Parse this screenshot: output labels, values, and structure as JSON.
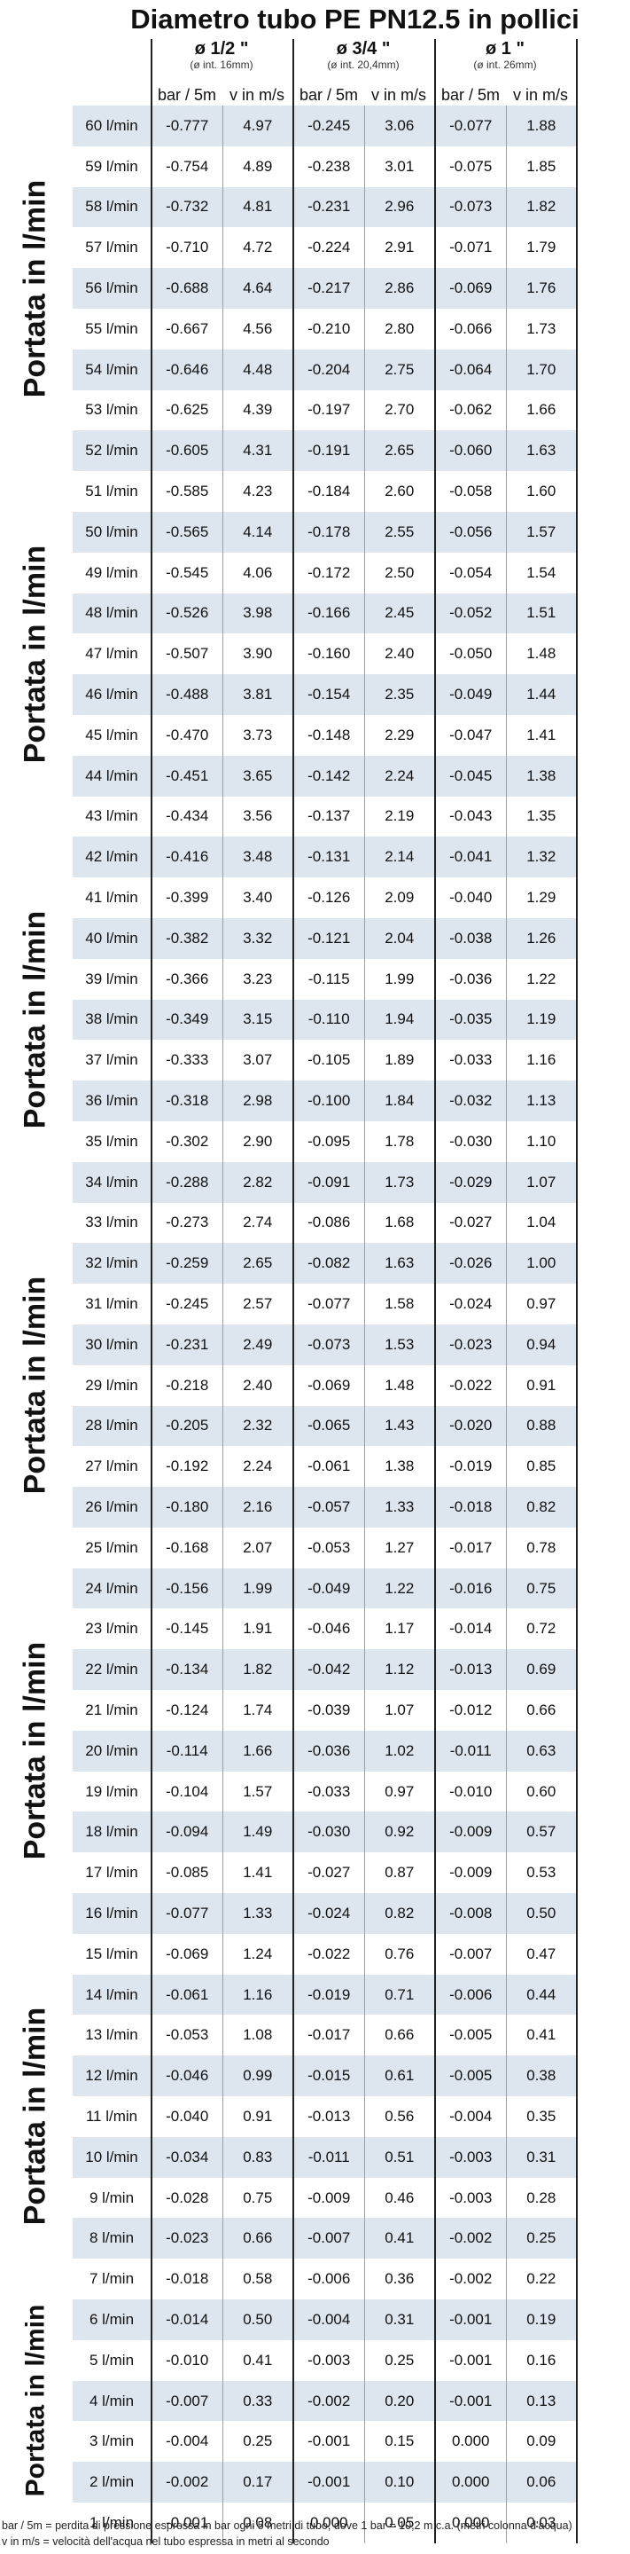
{
  "title": "Diametro tubo PE PN12.5 in pollici",
  "groups": [
    {
      "label": "ø 1/2 \"",
      "sub": "(ø int. 16mm)"
    },
    {
      "label": "ø 3/4 \"",
      "sub": "(ø int. 20,4mm)"
    },
    {
      "label": "ø 1 \"",
      "sub": "(ø int. 26mm)"
    }
  ],
  "col_bar": "bar / 5m",
  "col_v": "v in m/s",
  "side_label": "Portata in l/min",
  "rows": [
    [
      "60 l/min",
      "-0.777",
      "4.97",
      "-0.245",
      "3.06",
      "-0.077",
      "1.88"
    ],
    [
      "59 l/min",
      "-0.754",
      "4.89",
      "-0.238",
      "3.01",
      "-0.075",
      "1.85"
    ],
    [
      "58 l/min",
      "-0.732",
      "4.81",
      "-0.231",
      "2.96",
      "-0.073",
      "1.82"
    ],
    [
      "57 l/min",
      "-0.710",
      "4.72",
      "-0.224",
      "2.91",
      "-0.071",
      "1.79"
    ],
    [
      "56 l/min",
      "-0.688",
      "4.64",
      "-0.217",
      "2.86",
      "-0.069",
      "1.76"
    ],
    [
      "55 l/min",
      "-0.667",
      "4.56",
      "-0.210",
      "2.80",
      "-0.066",
      "1.73"
    ],
    [
      "54 l/min",
      "-0.646",
      "4.48",
      "-0.204",
      "2.75",
      "-0.064",
      "1.70"
    ],
    [
      "53 l/min",
      "-0.625",
      "4.39",
      "-0.197",
      "2.70",
      "-0.062",
      "1.66"
    ],
    [
      "52 l/min",
      "-0.605",
      "4.31",
      "-0.191",
      "2.65",
      "-0.060",
      "1.63"
    ],
    [
      "51 l/min",
      "-0.585",
      "4.23",
      "-0.184",
      "2.60",
      "-0.058",
      "1.60"
    ],
    [
      "50 l/min",
      "-0.565",
      "4.14",
      "-0.178",
      "2.55",
      "-0.056",
      "1.57"
    ],
    [
      "49 l/min",
      "-0.545",
      "4.06",
      "-0.172",
      "2.50",
      "-0.054",
      "1.54"
    ],
    [
      "48 l/min",
      "-0.526",
      "3.98",
      "-0.166",
      "2.45",
      "-0.052",
      "1.51"
    ],
    [
      "47 l/min",
      "-0.507",
      "3.90",
      "-0.160",
      "2.40",
      "-0.050",
      "1.48"
    ],
    [
      "46 l/min",
      "-0.488",
      "3.81",
      "-0.154",
      "2.35",
      "-0.049",
      "1.44"
    ],
    [
      "45 l/min",
      "-0.470",
      "3.73",
      "-0.148",
      "2.29",
      "-0.047",
      "1.41"
    ],
    [
      "44 l/min",
      "-0.451",
      "3.65",
      "-0.142",
      "2.24",
      "-0.045",
      "1.38"
    ],
    [
      "43 l/min",
      "-0.434",
      "3.56",
      "-0.137",
      "2.19",
      "-0.043",
      "1.35"
    ],
    [
      "42 l/min",
      "-0.416",
      "3.48",
      "-0.131",
      "2.14",
      "-0.041",
      "1.32"
    ],
    [
      "41 l/min",
      "-0.399",
      "3.40",
      "-0.126",
      "2.09",
      "-0.040",
      "1.29"
    ],
    [
      "40 l/min",
      "-0.382",
      "3.32",
      "-0.121",
      "2.04",
      "-0.038",
      "1.26"
    ],
    [
      "39 l/min",
      "-0.366",
      "3.23",
      "-0.115",
      "1.99",
      "-0.036",
      "1.22"
    ],
    [
      "38 l/min",
      "-0.349",
      "3.15",
      "-0.110",
      "1.94",
      "-0.035",
      "1.19"
    ],
    [
      "37 l/min",
      "-0.333",
      "3.07",
      "-0.105",
      "1.89",
      "-0.033",
      "1.16"
    ],
    [
      "36 l/min",
      "-0.318",
      "2.98",
      "-0.100",
      "1.84",
      "-0.032",
      "1.13"
    ],
    [
      "35 l/min",
      "-0.302",
      "2.90",
      "-0.095",
      "1.78",
      "-0.030",
      "1.10"
    ],
    [
      "34 l/min",
      "-0.288",
      "2.82",
      "-0.091",
      "1.73",
      "-0.029",
      "1.07"
    ],
    [
      "33 l/min",
      "-0.273",
      "2.74",
      "-0.086",
      "1.68",
      "-0.027",
      "1.04"
    ],
    [
      "32 l/min",
      "-0.259",
      "2.65",
      "-0.082",
      "1.63",
      "-0.026",
      "1.00"
    ],
    [
      "31 l/min",
      "-0.245",
      "2.57",
      "-0.077",
      "1.58",
      "-0.024",
      "0.97"
    ],
    [
      "30 l/min",
      "-0.231",
      "2.49",
      "-0.073",
      "1.53",
      "-0.023",
      "0.94"
    ],
    [
      "29 l/min",
      "-0.218",
      "2.40",
      "-0.069",
      "1.48",
      "-0.022",
      "0.91"
    ],
    [
      "28 l/min",
      "-0.205",
      "2.32",
      "-0.065",
      "1.43",
      "-0.020",
      "0.88"
    ],
    [
      "27 l/min",
      "-0.192",
      "2.24",
      "-0.061",
      "1.38",
      "-0.019",
      "0.85"
    ],
    [
      "26 l/min",
      "-0.180",
      "2.16",
      "-0.057",
      "1.33",
      "-0.018",
      "0.82"
    ],
    [
      "25 l/min",
      "-0.168",
      "2.07",
      "-0.053",
      "1.27",
      "-0.017",
      "0.78"
    ],
    [
      "24 l/min",
      "-0.156",
      "1.99",
      "-0.049",
      "1.22",
      "-0.016",
      "0.75"
    ],
    [
      "23 l/min",
      "-0.145",
      "1.91",
      "-0.046",
      "1.17",
      "-0.014",
      "0.72"
    ],
    [
      "22 l/min",
      "-0.134",
      "1.82",
      "-0.042",
      "1.12",
      "-0.013",
      "0.69"
    ],
    [
      "21 l/min",
      "-0.124",
      "1.74",
      "-0.039",
      "1.07",
      "-0.012",
      "0.66"
    ],
    [
      "20 l/min",
      "-0.114",
      "1.66",
      "-0.036",
      "1.02",
      "-0.011",
      "0.63"
    ],
    [
      "19 l/min",
      "-0.104",
      "1.57",
      "-0.033",
      "0.97",
      "-0.010",
      "0.60"
    ],
    [
      "18 l/min",
      "-0.094",
      "1.49",
      "-0.030",
      "0.92",
      "-0.009",
      "0.57"
    ],
    [
      "17 l/min",
      "-0.085",
      "1.41",
      "-0.027",
      "0.87",
      "-0.009",
      "0.53"
    ],
    [
      "16 l/min",
      "-0.077",
      "1.33",
      "-0.024",
      "0.82",
      "-0.008",
      "0.50"
    ],
    [
      "15 l/min",
      "-0.069",
      "1.24",
      "-0.022",
      "0.76",
      "-0.007",
      "0.47"
    ],
    [
      "14 l/min",
      "-0.061",
      "1.16",
      "-0.019",
      "0.71",
      "-0.006",
      "0.44"
    ],
    [
      "13 l/min",
      "-0.053",
      "1.08",
      "-0.017",
      "0.66",
      "-0.005",
      "0.41"
    ],
    [
      "12 l/min",
      "-0.046",
      "0.99",
      "-0.015",
      "0.61",
      "-0.005",
      "0.38"
    ],
    [
      "11 l/min",
      "-0.040",
      "0.91",
      "-0.013",
      "0.56",
      "-0.004",
      "0.35"
    ],
    [
      "10 l/min",
      "-0.034",
      "0.83",
      "-0.011",
      "0.51",
      "-0.003",
      "0.31"
    ],
    [
      "9 l/min",
      "-0.028",
      "0.75",
      "-0.009",
      "0.46",
      "-0.003",
      "0.28"
    ],
    [
      "8 l/min",
      "-0.023",
      "0.66",
      "-0.007",
      "0.41",
      "-0.002",
      "0.25"
    ],
    [
      "7 l/min",
      "-0.018",
      "0.58",
      "-0.006",
      "0.36",
      "-0.002",
      "0.22"
    ],
    [
      "6 l/min",
      "-0.014",
      "0.50",
      "-0.004",
      "0.31",
      "-0.001",
      "0.19"
    ],
    [
      "5 l/min",
      "-0.010",
      "0.41",
      "-0.003",
      "0.25",
      "-0.001",
      "0.16"
    ],
    [
      "4 l/min",
      "-0.007",
      "0.33",
      "-0.002",
      "0.20",
      "-0.001",
      "0.13"
    ],
    [
      "3 l/min",
      "-0.004",
      "0.25",
      "-0.001",
      "0.15",
      "0.000",
      "0.09"
    ],
    [
      "2 l/min",
      "-0.002",
      "0.17",
      "-0.001",
      "0.10",
      "0.000",
      "0.06"
    ],
    [
      "1 l/min",
      "-0.001",
      "0.08",
      "0.000",
      "0.05",
      "0.000",
      "0.03"
    ]
  ],
  "footer": [
    "bar / 5m = perdita di pressione espressa in bar ogni 5 metri di tubo, dove 1 bar = 10,2 m c.a. (metri colonna d'acqua)",
    "v in m/s = velocità dell'acqua nel tubo espressa in metri al secondo"
  ],
  "colors": {
    "stripe": "#dde5ef",
    "border": "#222222"
  }
}
